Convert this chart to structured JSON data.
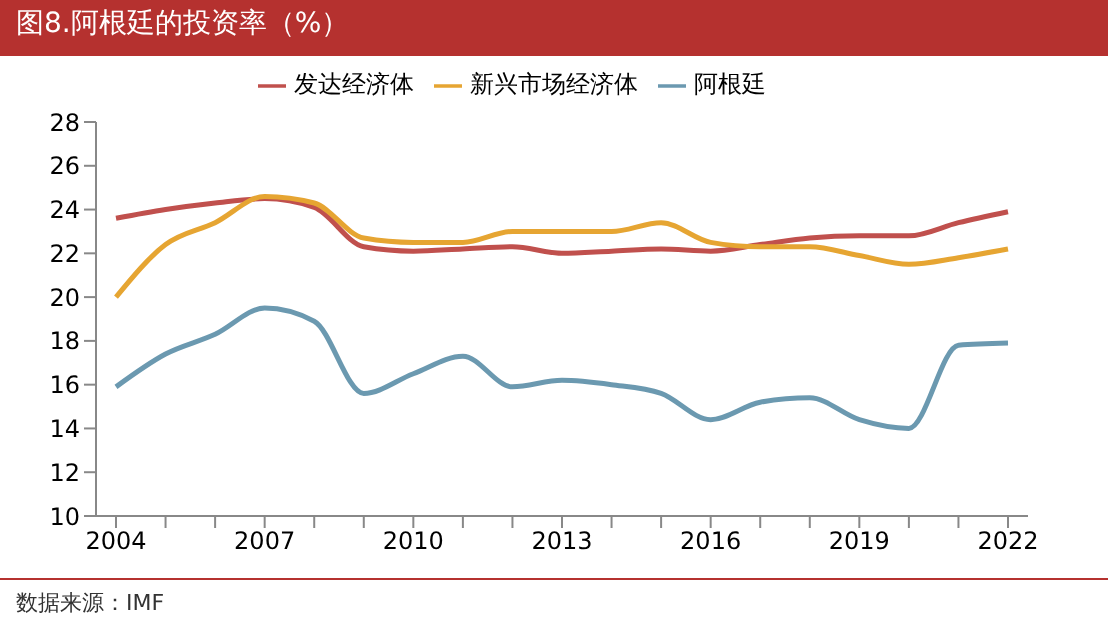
{
  "chart_data": {
    "type": "line",
    "title": "图8.阿根廷的投资率（%）",
    "categories": [
      "2004",
      null,
      null,
      "2007",
      null,
      null,
      "2010",
      null,
      null,
      "2013",
      null,
      null,
      "2016",
      null,
      null,
      "2019",
      null,
      null,
      "2022"
    ],
    "series": [
      {
        "name": "发达经济体",
        "color": "#c0504d",
        "values": [
          23.6,
          24.0,
          24.3,
          24.5,
          24.1,
          22.3,
          22.1,
          22.2,
          22.3,
          22.0,
          22.1,
          22.2,
          22.1,
          22.4,
          22.7,
          22.8,
          22.8,
          23.4,
          23.9
        ]
      },
      {
        "name": "新兴市场经济体",
        "color": "#e6a532",
        "values": [
          20.0,
          22.4,
          23.4,
          24.6,
          24.3,
          22.7,
          22.5,
          22.5,
          23.0,
          23.0,
          23.0,
          23.4,
          22.5,
          22.3,
          22.3,
          21.9,
          21.5,
          21.8,
          22.2
        ]
      },
      {
        "name": "阿根廷",
        "color": "#6b99b0",
        "values": [
          15.9,
          17.4,
          18.3,
          19.5,
          18.9,
          15.6,
          16.5,
          17.3,
          15.9,
          16.2,
          16.0,
          15.6,
          14.4,
          15.2,
          15.4,
          14.4,
          14.0,
          17.8,
          17.9
        ]
      }
    ],
    "ylim": [
      10,
      28
    ],
    "yticks": [
      10,
      12,
      14,
      16,
      18,
      20,
      22,
      24,
      26,
      28
    ],
    "legend": "top",
    "marker": "none",
    "line_style": "solid",
    "annotations": [
      "数据来源：IMF"
    ]
  }
}
